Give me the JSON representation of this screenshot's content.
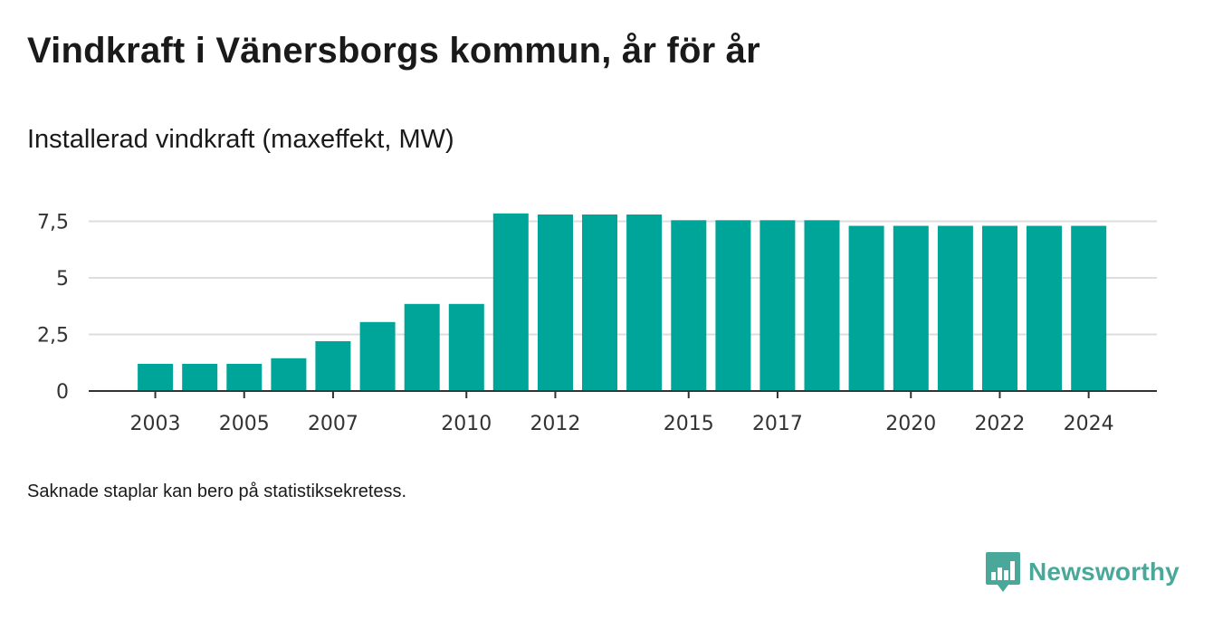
{
  "header": {
    "title": "Vindkraft i Vänersborgs kommun, år för år",
    "subtitle": "Installerad vindkraft (maxeffekt, MW)"
  },
  "footnote": "Saknade staplar kan bero på statistiksekretess.",
  "brand": {
    "name": "Newsworthy",
    "logo_icon": "newsworthy-chart-speech-bubble-icon"
  },
  "colors": {
    "bar": "#00a599",
    "grid": "#dddddd",
    "axis": "#333333",
    "brand": "#4aa89a"
  },
  "chart_data": {
    "type": "bar",
    "title": "Vindkraft i Vänersborgs kommun, år för år",
    "subtitle": "Installerad vindkraft (maxeffekt, MW)",
    "xlabel": "",
    "ylabel": "",
    "categories": [
      "2003",
      "2004",
      "2005",
      "2006",
      "2007",
      "2008",
      "2009",
      "2010",
      "2011",
      "2012",
      "2013",
      "2014",
      "2015",
      "2016",
      "2017",
      "2018",
      "2019",
      "2020",
      "2021",
      "2022",
      "2023",
      "2024"
    ],
    "values": [
      1.2,
      1.2,
      1.2,
      1.45,
      2.2,
      3.05,
      3.85,
      3.85,
      7.85,
      7.8,
      7.8,
      7.8,
      7.55,
      7.55,
      7.55,
      7.55,
      7.3,
      7.3,
      7.3,
      7.3,
      7.3,
      7.3
    ],
    "ylim": [
      0,
      8.5
    ],
    "yticks": [
      0,
      2.5,
      5,
      7.5
    ],
    "ytick_labels": [
      "0",
      "2,5",
      "5",
      "7,5"
    ],
    "xtick_labels": [
      "2003",
      "2005",
      "2007",
      "2010",
      "2012",
      "2015",
      "2017",
      "2020",
      "2022",
      "2024"
    ],
    "grid": true,
    "legend": "none"
  }
}
